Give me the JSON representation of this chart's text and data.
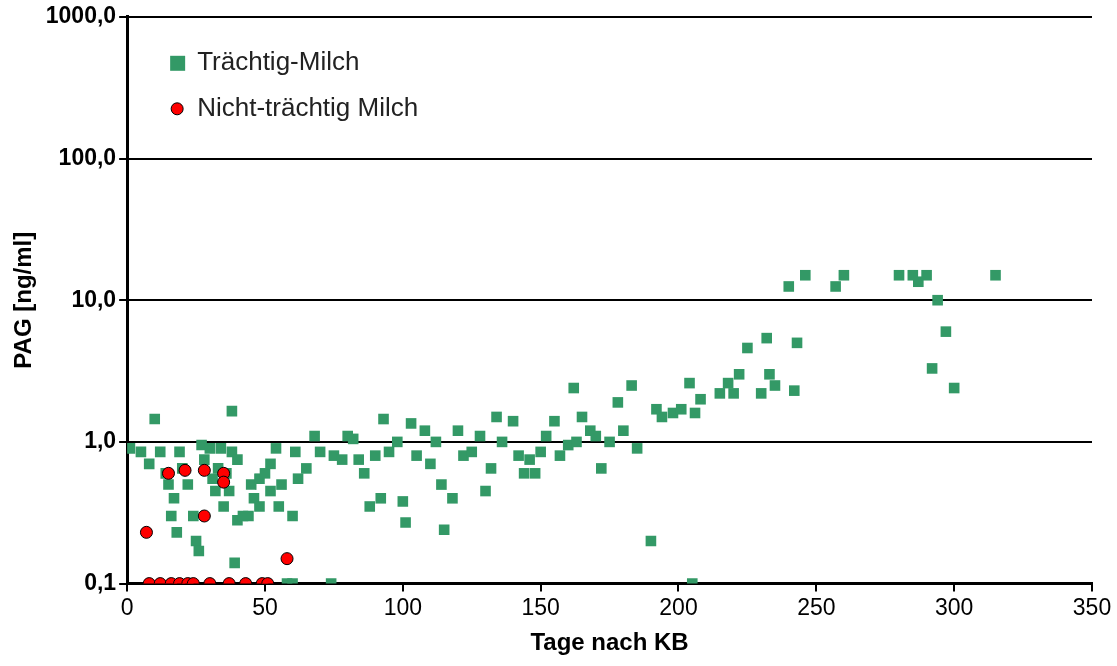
{
  "chart_data": {
    "type": "scatter",
    "xlabel": "Tage nach KB",
    "ylabel": "PAG [ng/ml]",
    "log": "y",
    "xlim": [
      0,
      350
    ],
    "xticks": [
      0,
      50,
      100,
      150,
      200,
      250,
      300,
      350
    ],
    "ylim": [
      0.1,
      1000
    ],
    "yticks": [
      {
        "value": 0.1,
        "label": "0,1"
      },
      {
        "value": 1,
        "label": "1,0"
      },
      {
        "value": 10,
        "label": "10,0"
      },
      {
        "value": 100,
        "label": "100,0"
      },
      {
        "value": 1000,
        "label": "1000,0"
      }
    ],
    "grid": "y",
    "legend": "top left",
    "series": [
      {
        "name": "Trächtig-Milch",
        "color": "#339966",
        "marker": "square",
        "x": [
          1,
          5,
          10,
          8,
          12,
          14,
          15,
          16,
          17,
          18,
          19,
          20,
          22,
          24,
          25,
          26,
          27,
          28,
          30,
          31,
          32,
          33,
          34,
          35,
          36,
          37,
          38,
          38,
          39,
          40,
          40,
          42,
          44,
          45,
          46,
          48,
          48,
          50,
          52,
          52,
          54,
          55,
          56,
          58,
          60,
          60,
          61,
          62,
          65,
          68,
          70,
          74,
          75,
          78,
          80,
          82,
          84,
          86,
          88,
          90,
          92,
          93,
          95,
          98,
          100,
          101,
          103,
          105,
          108,
          110,
          112,
          114,
          115,
          118,
          120,
          122,
          125,
          128,
          130,
          132,
          134,
          136,
          140,
          142,
          144,
          146,
          148,
          150,
          152,
          155,
          157,
          160,
          162,
          163,
          165,
          168,
          170,
          172,
          175,
          178,
          180,
          183,
          185,
          190,
          192,
          194,
          198,
          201,
          204,
          205,
          206,
          208,
          215,
          218,
          220,
          222,
          225,
          230,
          232,
          233,
          235,
          240,
          242,
          243,
          246,
          257,
          260,
          280,
          285,
          287,
          290,
          292,
          294,
          297,
          300,
          315
        ],
        "values": [
          0.9,
          0.85,
          1.45,
          0.7,
          0.85,
          0.6,
          0.5,
          0.3,
          0.4,
          0.23,
          0.85,
          0.65,
          0.5,
          0.3,
          0.2,
          0.17,
          0.95,
          0.75,
          0.9,
          0.55,
          0.45,
          0.65,
          0.9,
          0.35,
          0.6,
          0.45,
          1.65,
          0.85,
          0.14,
          0.75,
          0.28,
          0.3,
          0.3,
          0.5,
          0.4,
          0.35,
          0.55,
          0.6,
          0.45,
          0.7,
          0.9,
          0.35,
          0.5,
          0.1,
          0.1,
          0.3,
          0.85,
          0.55,
          0.65,
          1.1,
          0.85,
          0.1,
          0.8,
          0.75,
          1.1,
          1.05,
          0.75,
          0.6,
          0.35,
          0.8,
          0.4,
          1.45,
          0.85,
          1.0,
          0.38,
          0.27,
          1.35,
          0.8,
          1.2,
          0.7,
          1.0,
          0.5,
          0.24,
          0.4,
          1.2,
          0.8,
          0.85,
          1.1,
          0.45,
          0.65,
          1.5,
          1.0,
          1.4,
          0.8,
          0.6,
          0.75,
          0.6,
          0.85,
          1.1,
          1.4,
          0.8,
          0.95,
          2.4,
          1.0,
          1.5,
          1.2,
          1.1,
          0.65,
          1.0,
          1.9,
          1.2,
          2.5,
          0.9,
          0.2,
          1.7,
          1.5,
          1.6,
          1.7,
          2.6,
          0.1,
          1.6,
          2.0,
          2.2,
          2.6,
          2.2,
          3.0,
          4.6,
          2.2,
          5.4,
          3.0,
          2.5,
          12.5,
          2.3,
          5.0,
          15,
          12.5,
          15,
          15,
          15,
          13.5,
          15,
          3.3,
          10,
          6,
          2.4,
          15
        ]
      },
      {
        "name": "Nicht-trächtig Milch",
        "color": "#ff0000",
        "marker": "circle",
        "x": [
          7,
          8,
          12,
          15,
          16,
          19,
          21,
          22,
          24,
          28,
          28,
          30,
          35,
          35,
          37,
          43,
          49,
          51,
          58
        ],
        "values": [
          0.23,
          0.1,
          0.1,
          0.6,
          0.1,
          0.1,
          0.63,
          0.1,
          0.1,
          0.63,
          0.3,
          0.1,
          0.6,
          0.52,
          0.1,
          0.1,
          0.1,
          0.1,
          0.15
        ]
      }
    ]
  }
}
